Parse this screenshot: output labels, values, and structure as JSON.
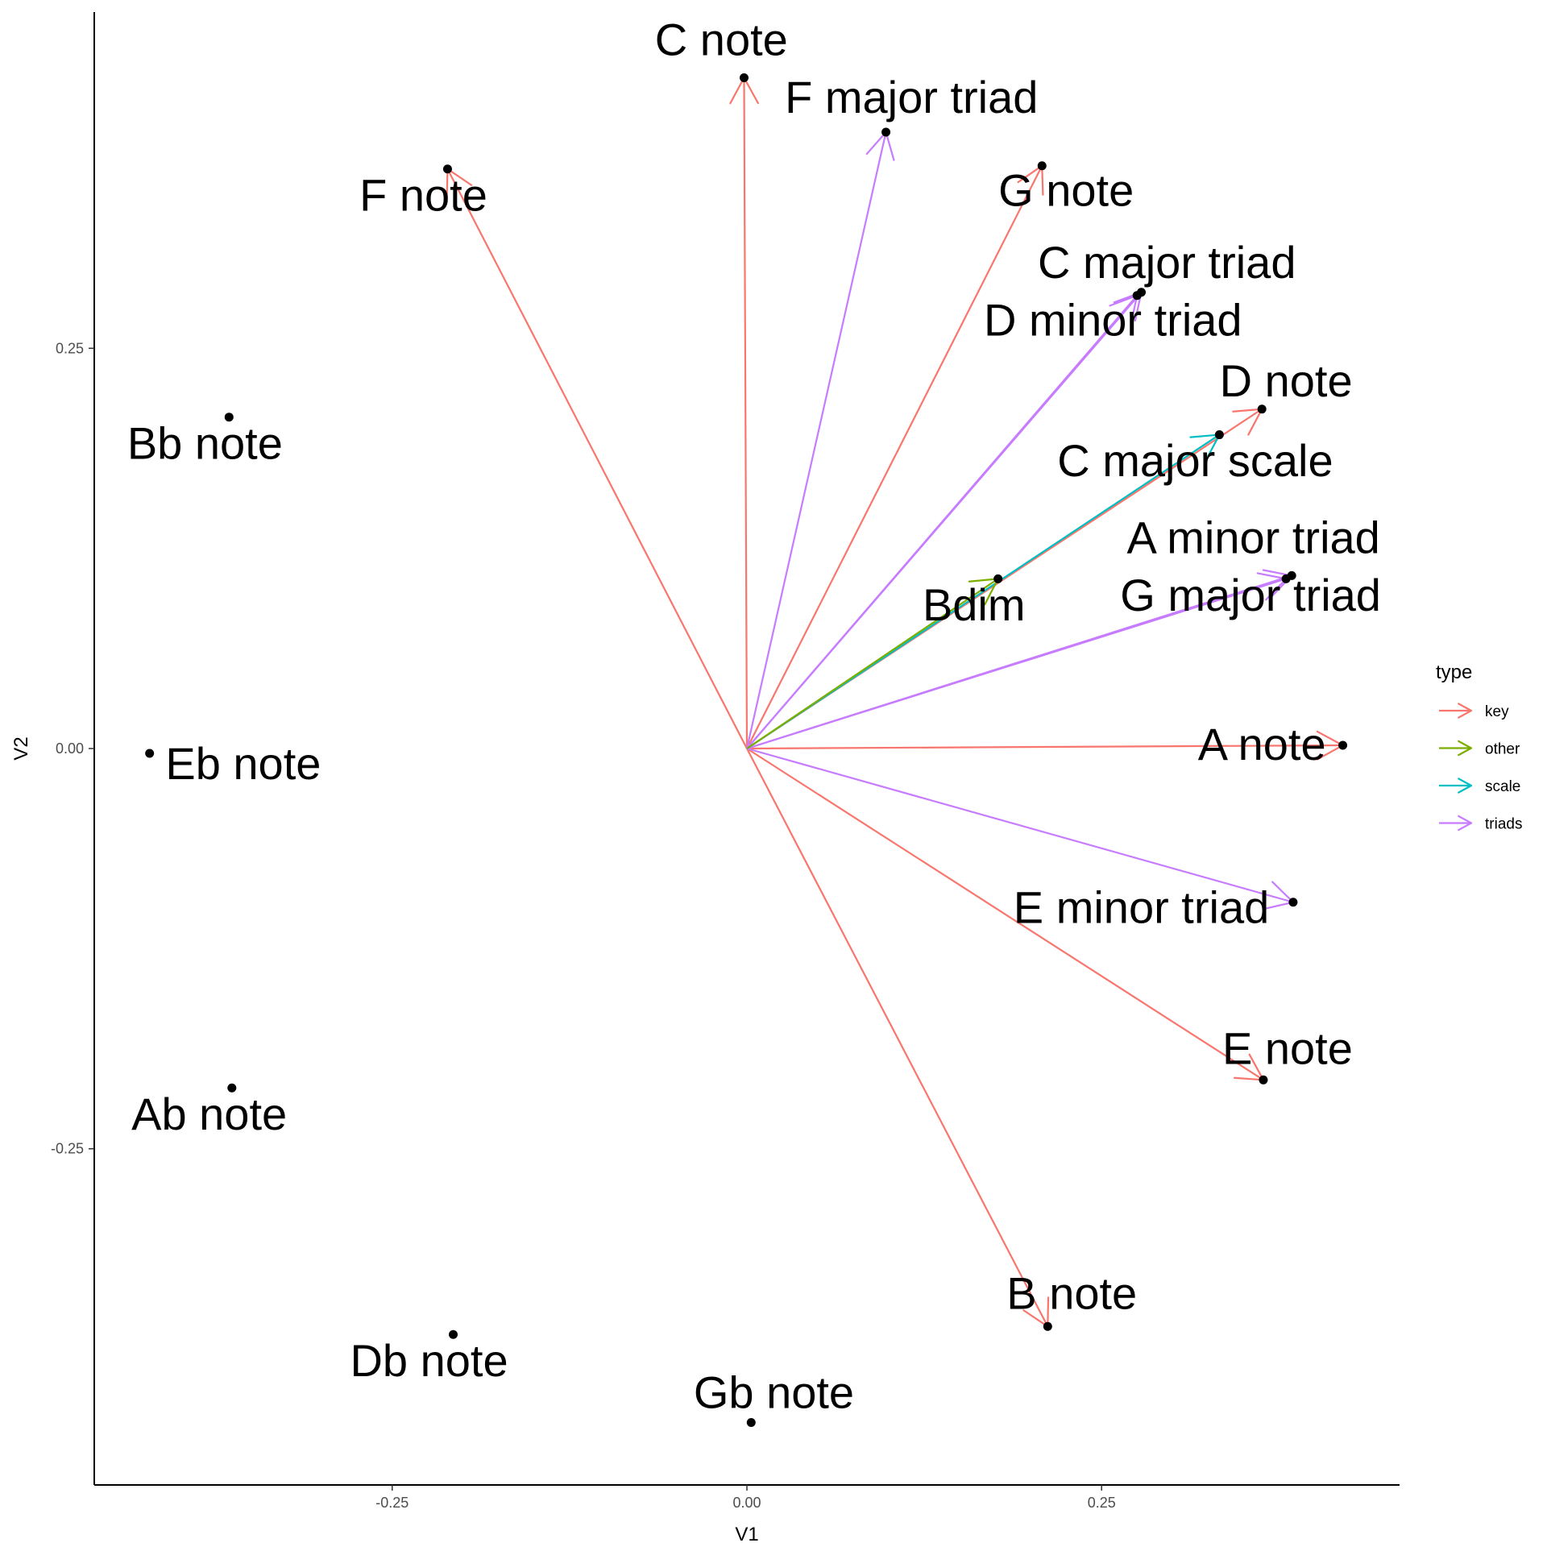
{
  "chart_data": {
    "type": "scatter",
    "xlabel": "V1",
    "ylabel": "V2",
    "xlim": [
      -0.46,
      0.46
    ],
    "ylim": [
      -0.46,
      0.46
    ],
    "x_ticks": [
      {
        "value": -0.25,
        "label": "-0.25"
      },
      {
        "value": 0.0,
        "label": "0.00"
      },
      {
        "value": 0.25,
        "label": "0.25"
      }
    ],
    "y_ticks": [
      {
        "value": 0.25,
        "label": "0.25"
      },
      {
        "value": 0.0,
        "label": "0.00"
      },
      {
        "value": -0.25,
        "label": "-0.25"
      }
    ],
    "grid": false,
    "legend": {
      "title": "type",
      "position": "right",
      "entries": [
        {
          "name": "key",
          "color": "#F8766D"
        },
        {
          "name": "other",
          "color": "#7CAE00"
        },
        {
          "name": "scale",
          "color": "#00BFC4"
        },
        {
          "name": "triads",
          "color": "#C77CFF"
        }
      ]
    },
    "vectors": [
      {
        "label": "C note",
        "type": "key",
        "x": -0.002,
        "y": 0.419
      },
      {
        "label": "F note",
        "type": "key",
        "x": -0.211,
        "y": 0.362
      },
      {
        "label": "G note",
        "type": "key",
        "x": 0.208,
        "y": 0.364
      },
      {
        "label": "D note",
        "type": "key",
        "x": 0.363,
        "y": 0.212
      },
      {
        "label": "A note",
        "type": "key",
        "x": 0.42,
        "y": 0.002
      },
      {
        "label": "E note",
        "type": "key",
        "x": 0.364,
        "y": -0.207
      },
      {
        "label": "B note",
        "type": "key",
        "x": 0.212,
        "y": -0.361
      },
      {
        "label": "F major triad",
        "type": "triads",
        "x": 0.098,
        "y": 0.385
      },
      {
        "label": "C major triad",
        "type": "triads",
        "x": 0.278,
        "y": 0.285
      },
      {
        "label": "D minor triad",
        "type": "triads",
        "x": 0.275,
        "y": 0.283
      },
      {
        "label": "A minor triad",
        "type": "triads",
        "x": 0.384,
        "y": 0.108
      },
      {
        "label": "G major triad",
        "type": "triads",
        "x": 0.38,
        "y": 0.106
      },
      {
        "label": "E minor triad",
        "type": "triads",
        "x": 0.385,
        "y": -0.096
      },
      {
        "label": "C major scale",
        "type": "scale",
        "x": 0.333,
        "y": 0.196
      },
      {
        "label": "Bdim",
        "type": "other",
        "x": 0.177,
        "y": 0.106
      }
    ],
    "points": [
      {
        "label": "Bb note",
        "x": -0.365,
        "y": 0.207
      },
      {
        "label": "Eb note",
        "x": -0.421,
        "y": -0.003
      },
      {
        "label": "Ab note",
        "x": -0.363,
        "y": -0.212
      },
      {
        "label": "Db note",
        "x": -0.207,
        "y": -0.366
      },
      {
        "label": "Gb note",
        "x": 0.003,
        "y": -0.421
      }
    ],
    "labels": [
      {
        "text": "C note",
        "x": -0.018,
        "y": 0.433,
        "anchor": "middle"
      },
      {
        "text": "F major triad",
        "x": 0.116,
        "y": 0.397,
        "anchor": "middle"
      },
      {
        "text": "F note",
        "x": -0.228,
        "y": 0.336,
        "anchor": "middle"
      },
      {
        "text": "G note",
        "x": 0.225,
        "y": 0.339,
        "anchor": "middle"
      },
      {
        "text": "C major triad",
        "x": 0.296,
        "y": 0.294,
        "anchor": "middle"
      },
      {
        "text": "D minor triad",
        "x": 0.258,
        "y": 0.258,
        "anchor": "middle"
      },
      {
        "text": "D note",
        "x": 0.38,
        "y": 0.22,
        "anchor": "middle"
      },
      {
        "text": "C major scale",
        "x": 0.316,
        "y": 0.17,
        "anchor": "middle"
      },
      {
        "text": "A minor triad",
        "x": 0.357,
        "y": 0.122,
        "anchor": "middle"
      },
      {
        "text": "Bdim",
        "x": 0.16,
        "y": 0.08,
        "anchor": "middle"
      },
      {
        "text": "G major triad",
        "x": 0.355,
        "y": 0.086,
        "anchor": "middle"
      },
      {
        "text": "Eb note",
        "x": -0.355,
        "y": -0.019,
        "anchor": "middle"
      },
      {
        "text": "A note",
        "x": 0.363,
        "y": -0.007,
        "anchor": "middle"
      },
      {
        "text": "Bb note",
        "x": -0.382,
        "y": 0.181,
        "anchor": "middle"
      },
      {
        "text": "E minor triad",
        "x": 0.278,
        "y": -0.109,
        "anchor": "middle"
      },
      {
        "text": "E note",
        "x": 0.381,
        "y": -0.197,
        "anchor": "middle"
      },
      {
        "text": "Ab note",
        "x": -0.379,
        "y": -0.238,
        "anchor": "middle"
      },
      {
        "text": "B note",
        "x": 0.229,
        "y": -0.35,
        "anchor": "middle"
      },
      {
        "text": "Db note",
        "x": -0.224,
        "y": -0.392,
        "anchor": "middle"
      },
      {
        "text": "Gb note",
        "x": 0.019,
        "y": -0.412,
        "anchor": "middle"
      }
    ]
  }
}
